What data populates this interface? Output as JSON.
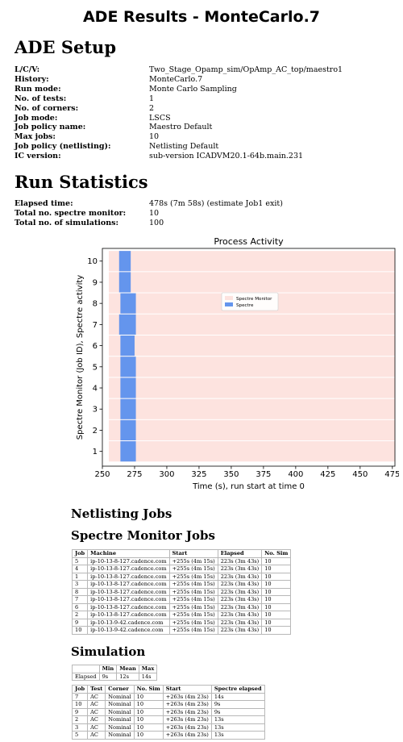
{
  "page_title": "ADE Results - MonteCarlo.7",
  "setup": {
    "heading": "ADE Setup",
    "rows": [
      {
        "key": "L/C/V:",
        "value": "Two_Stage_Opamp_sim/OpAmp_AC_top/maestro1"
      },
      {
        "key": "History:",
        "value": "MonteCarlo.7"
      },
      {
        "key": "Run mode:",
        "value": "Monte Carlo Sampling"
      },
      {
        "key": "No. of tests:",
        "value": "1"
      },
      {
        "key": "No. of corners:",
        "value": "2"
      },
      {
        "key": "Job mode:",
        "value": "LSCS"
      },
      {
        "key": "Job policy name:",
        "value": "Maestro Default"
      },
      {
        "key": "Max jobs:",
        "value": "10"
      },
      {
        "key": "Job policy (netlisting):",
        "value": "Netlisting Default"
      },
      {
        "key": "IC version:",
        "value": "sub-version ICADVM20.1-64b.main.231"
      }
    ]
  },
  "stats": {
    "heading": "Run Statistics",
    "rows": [
      {
        "key": "Elapsed time:",
        "value": "478s (7m 58s) (estimate Job1 exit)"
      },
      {
        "key": "Total no. spectre monitor:",
        "value": "10"
      },
      {
        "key": "Total no. of simulations:",
        "value": "100"
      }
    ]
  },
  "chart_data": {
    "type": "bar",
    "orientation": "horizontal",
    "title": "Process Activity",
    "xlabel": "Time (s),  run start at time 0",
    "ylabel": "Spectre Monitor (Job ID), Spectre activity",
    "xlim": [
      250,
      477
    ],
    "ylim": [
      0.3,
      10.6
    ],
    "xticks": [
      250,
      275,
      300,
      325,
      350,
      375,
      400,
      425,
      450,
      475
    ],
    "yticks": [
      1,
      2,
      3,
      4,
      5,
      6,
      7,
      8,
      9,
      10
    ],
    "legend_position": "upper-center",
    "series": [
      {
        "name": "Spectre Monitor",
        "color": "#fde3df",
        "bars": [
          {
            "job": 1,
            "start": 255,
            "end": 478
          },
          {
            "job": 2,
            "start": 255,
            "end": 478
          },
          {
            "job": 3,
            "start": 255,
            "end": 478
          },
          {
            "job": 4,
            "start": 255,
            "end": 478
          },
          {
            "job": 5,
            "start": 255,
            "end": 478
          },
          {
            "job": 6,
            "start": 255,
            "end": 478
          },
          {
            "job": 7,
            "start": 255,
            "end": 478
          },
          {
            "job": 8,
            "start": 255,
            "end": 478
          },
          {
            "job": 9,
            "start": 255,
            "end": 478
          },
          {
            "job": 10,
            "start": 255,
            "end": 478
          }
        ]
      },
      {
        "name": "Spectre",
        "color": "#6495ed",
        "bars": [
          {
            "job": 1,
            "start": 264,
            "end": 276
          },
          {
            "job": 2,
            "start": 264,
            "end": 276
          },
          {
            "job": 3,
            "start": 264,
            "end": 276
          },
          {
            "job": 4,
            "start": 264,
            "end": 276
          },
          {
            "job": 5,
            "start": 264,
            "end": 276
          },
          {
            "job": 6,
            "start": 264,
            "end": 275
          },
          {
            "job": 7,
            "start": 263,
            "end": 276
          },
          {
            "job": 8,
            "start": 264,
            "end": 276
          },
          {
            "job": 9,
            "start": 263,
            "end": 272
          },
          {
            "job": 10,
            "start": 263,
            "end": 272
          }
        ]
      }
    ]
  },
  "netlisting": {
    "heading": "Netlisting Jobs"
  },
  "monitor": {
    "heading": "Spectre Monitor Jobs",
    "columns": [
      "Job",
      "Machine",
      "Start",
      "Elapsed",
      "No. Sim"
    ],
    "rows": [
      [
        "5",
        "ip-10-13-8-127.cadence.com",
        "+255s (4m 15s)",
        "223s (3m 43s)",
        "10"
      ],
      [
        "4",
        "ip-10-13-8-127.cadence.com",
        "+255s (4m 15s)",
        "223s (3m 43s)",
        "10"
      ],
      [
        "1",
        "ip-10-13-8-127.cadence.com",
        "+255s (4m 15s)",
        "223s (3m 43s)",
        "10"
      ],
      [
        "3",
        "ip-10-13-8-127.cadence.com",
        "+255s (4m 15s)",
        "223s (3m 43s)",
        "10"
      ],
      [
        "8",
        "ip-10-13-8-127.cadence.com",
        "+255s (4m 15s)",
        "223s (3m 43s)",
        "10"
      ],
      [
        "7",
        "ip-10-13-8-127.cadence.com",
        "+255s (4m 15s)",
        "223s (3m 43s)",
        "10"
      ],
      [
        "6",
        "ip-10-13-8-127.cadence.com",
        "+255s (4m 15s)",
        "223s (3m 43s)",
        "10"
      ],
      [
        "2",
        "ip-10-13-8-127.cadence.com",
        "+255s (4m 15s)",
        "223s (3m 43s)",
        "10"
      ],
      [
        "9",
        "ip-10-13-9-42.cadence.com",
        "+255s (4m 15s)",
        "223s (3m 43s)",
        "10"
      ],
      [
        "10",
        "ip-10-13-9-42.cadence.com",
        "+255s (4m 15s)",
        "223s (3m 43s)",
        "10"
      ]
    ]
  },
  "simulation": {
    "heading": "Simulation",
    "summary": {
      "columns": [
        "",
        "Min",
        "Mean",
        "Max"
      ],
      "rows": [
        [
          "Elapsed",
          "9s",
          "12s",
          "14s"
        ]
      ]
    },
    "columns": [
      "Job",
      "Test",
      "Corner",
      "No. Sim",
      "Start",
      "Spectre elapsed"
    ],
    "rows": [
      [
        "7",
        "AC",
        "Nominal",
        "10",
        "+263s (4m 23s)",
        "14s"
      ],
      [
        "10",
        "AC",
        "Nominal",
        "10",
        "+263s (4m 23s)",
        "9s"
      ],
      [
        "9",
        "AC",
        "Nominal",
        "10",
        "+263s (4m 23s)",
        "9s"
      ],
      [
        "2",
        "AC",
        "Nominal",
        "10",
        "+263s (4m 23s)",
        "13s"
      ],
      [
        "3",
        "AC",
        "Nominal",
        "10",
        "+263s (4m 23s)",
        "13s"
      ],
      [
        "5",
        "AC",
        "Nominal",
        "10",
        "+263s (4m 23s)",
        "13s"
      ]
    ]
  }
}
